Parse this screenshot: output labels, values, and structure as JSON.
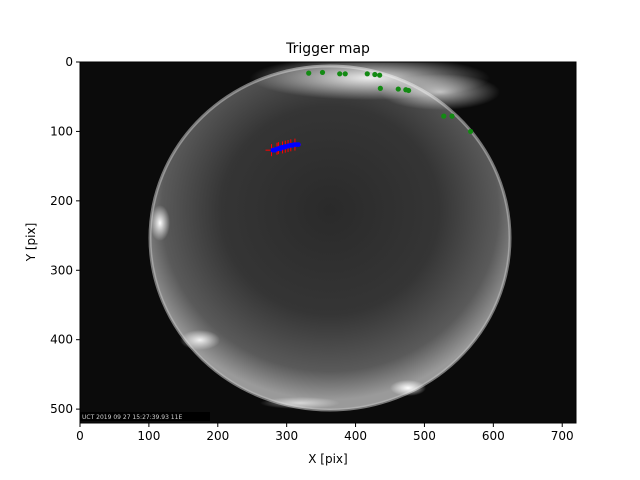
{
  "chart_data": {
    "type": "scatter",
    "title": "Trigger map",
    "xlabel": "X [pix]",
    "ylabel": "Y [pix]",
    "xlim": [
      0,
      720
    ],
    "ylim": [
      520,
      0
    ],
    "x_ticks": [
      0,
      100,
      200,
      300,
      400,
      500,
      600,
      700
    ],
    "y_ticks": [
      0,
      100,
      200,
      300,
      400,
      500
    ],
    "grid": false,
    "legend": "none",
    "background": "all-sky fisheye camera image (dark frame, bright circular sky with city-light glow at the rim)",
    "timestamp_overlay": "UCT 2019 09 27 15:27:39.93 11E",
    "colors": {
      "stars": "#138a13",
      "trigger_red": "#ff0000",
      "trigger_blue": "#0000ff"
    },
    "series": [
      {
        "marker": "green-dot",
        "points": [
          [
            332,
            16
          ],
          [
            352,
            15
          ],
          [
            377,
            17
          ],
          [
            385,
            17
          ],
          [
            417,
            17
          ],
          [
            428,
            18
          ],
          [
            435,
            19
          ],
          [
            436,
            38
          ],
          [
            462,
            39
          ],
          [
            473,
            40
          ],
          [
            477,
            41
          ],
          [
            528,
            78
          ],
          [
            540,
            78
          ],
          [
            567,
            100
          ]
        ]
      },
      {
        "marker": "red-plus",
        "points": [
          [
            278,
            127
          ],
          [
            288,
            124
          ],
          [
            298,
            122
          ],
          [
            306,
            120
          ],
          [
            312,
            119
          ],
          [
            286,
            125
          ],
          [
            302,
            121
          ],
          [
            294,
            123
          ]
        ]
      },
      {
        "marker": "blue-dot",
        "points": [
          [
            280,
            127
          ],
          [
            284,
            126
          ],
          [
            287,
            125
          ],
          [
            290,
            124
          ],
          [
            293,
            123
          ],
          [
            296,
            123
          ],
          [
            299,
            122
          ],
          [
            302,
            121
          ],
          [
            305,
            120
          ],
          [
            308,
            120
          ],
          [
            311,
            119
          ],
          [
            314,
            119
          ],
          [
            317,
            119
          ],
          [
            283,
            127
          ],
          [
            291,
            125
          ],
          [
            297,
            122
          ],
          [
            303,
            121
          ],
          [
            309,
            120
          ]
        ]
      }
    ]
  }
}
